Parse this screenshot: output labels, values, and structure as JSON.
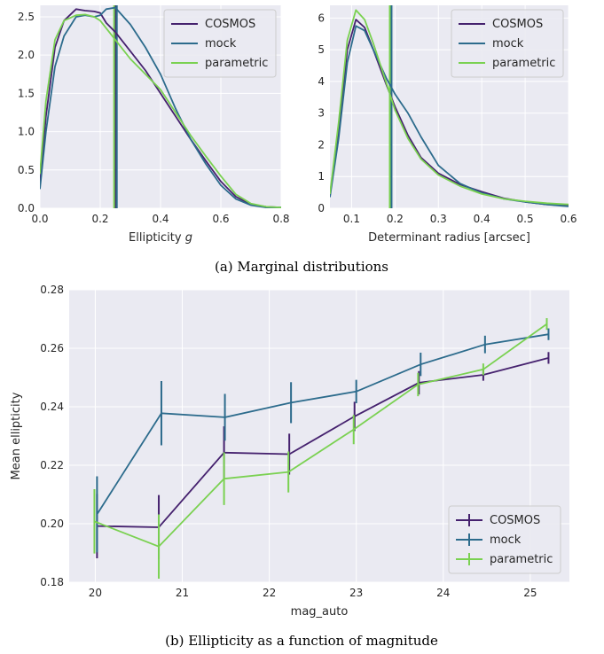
{
  "colors": {
    "COSMOS": "#45216e",
    "mock": "#2c6b8c",
    "parametric": "#7ad151",
    "panel_bg": "#eaeaf2",
    "grid": "#ffffff"
  },
  "captions": {
    "a": "(a) Marginal distributions",
    "b": "(b) Ellipticity as a function of magnitude"
  },
  "chart_data": [
    {
      "type": "line",
      "subtype": "density",
      "xlabel": "Ellipticity g",
      "xlabel_text": "Ellipticity ",
      "xlabel_italic": "g",
      "ylabel": "",
      "xlim": [
        0.0,
        0.8
      ],
      "ylim": [
        0.0,
        2.65
      ],
      "xticks": [
        0.0,
        0.2,
        0.4,
        0.6,
        0.8
      ],
      "xtick_labels": [
        "0.0",
        "0.2",
        "0.4",
        "0.6",
        "0.8"
      ],
      "yticks": [
        0.0,
        0.5,
        1.0,
        1.5,
        2.0,
        2.5
      ],
      "ytick_labels": [
        "0.0",
        "0.5",
        "1.0",
        "1.5",
        "2.0",
        "2.5"
      ],
      "grid": true,
      "legend_position": "upper right",
      "series": [
        {
          "name": "COSMOS",
          "x": [
            0.0,
            0.02,
            0.05,
            0.08,
            0.12,
            0.15,
            0.18,
            0.2,
            0.22,
            0.25,
            0.3,
            0.35,
            0.4,
            0.45,
            0.5,
            0.55,
            0.6,
            0.65,
            0.7,
            0.75,
            0.8
          ],
          "y": [
            0.3,
            1.2,
            2.1,
            2.45,
            2.6,
            2.58,
            2.57,
            2.55,
            2.42,
            2.3,
            2.05,
            1.8,
            1.5,
            1.2,
            0.9,
            0.62,
            0.35,
            0.15,
            0.05,
            0.02,
            0.01
          ]
        },
        {
          "name": "mock",
          "x": [
            0.0,
            0.02,
            0.05,
            0.08,
            0.12,
            0.15,
            0.18,
            0.2,
            0.22,
            0.25,
            0.3,
            0.35,
            0.4,
            0.45,
            0.5,
            0.55,
            0.6,
            0.65,
            0.7,
            0.75,
            0.8
          ],
          "y": [
            0.25,
            1.0,
            1.85,
            2.25,
            2.5,
            2.52,
            2.5,
            2.52,
            2.6,
            2.62,
            2.4,
            2.1,
            1.75,
            1.3,
            0.9,
            0.58,
            0.3,
            0.12,
            0.04,
            0.01,
            0.01
          ]
        },
        {
          "name": "parametric",
          "x": [
            0.0,
            0.02,
            0.05,
            0.08,
            0.12,
            0.15,
            0.18,
            0.2,
            0.22,
            0.25,
            0.3,
            0.35,
            0.4,
            0.45,
            0.5,
            0.55,
            0.6,
            0.65,
            0.7,
            0.75,
            0.8
          ],
          "y": [
            0.45,
            1.4,
            2.2,
            2.45,
            2.52,
            2.53,
            2.5,
            2.45,
            2.35,
            2.2,
            1.95,
            1.75,
            1.55,
            1.25,
            0.95,
            0.68,
            0.42,
            0.18,
            0.06,
            0.02,
            0.01
          ]
        }
      ],
      "vlines": [
        {
          "series": "COSMOS",
          "x": 0.25
        },
        {
          "series": "mock",
          "x": 0.255
        },
        {
          "series": "parametric",
          "x": 0.246
        }
      ]
    },
    {
      "type": "line",
      "subtype": "density",
      "xlabel": "Determinant radius [arcsec]",
      "ylabel": "",
      "xlim": [
        0.05,
        0.6
      ],
      "ylim": [
        0.0,
        6.4
      ],
      "xticks": [
        0.1,
        0.2,
        0.3,
        0.4,
        0.5,
        0.6
      ],
      "xtick_labels": [
        "0.1",
        "0.2",
        "0.3",
        "0.4",
        "0.5",
        "0.6"
      ],
      "yticks": [
        0,
        1,
        2,
        3,
        4,
        5,
        6
      ],
      "ytick_labels": [
        "0",
        "1",
        "2",
        "3",
        "4",
        "5",
        "6"
      ],
      "grid": true,
      "legend_position": "upper right",
      "series": [
        {
          "name": "COSMOS",
          "x": [
            0.05,
            0.07,
            0.09,
            0.11,
            0.13,
            0.15,
            0.18,
            0.2,
            0.23,
            0.26,
            0.3,
            0.35,
            0.4,
            0.45,
            0.5,
            0.55,
            0.6
          ],
          "y": [
            0.4,
            2.5,
            5.0,
            5.95,
            5.7,
            5.0,
            3.9,
            3.2,
            2.3,
            1.6,
            1.1,
            0.75,
            0.52,
            0.32,
            0.2,
            0.12,
            0.08
          ]
        },
        {
          "name": "mock",
          "x": [
            0.05,
            0.07,
            0.09,
            0.11,
            0.13,
            0.15,
            0.18,
            0.2,
            0.23,
            0.26,
            0.3,
            0.35,
            0.4,
            0.45,
            0.5,
            0.55,
            0.6
          ],
          "y": [
            0.35,
            2.2,
            4.6,
            5.75,
            5.6,
            5.0,
            4.1,
            3.6,
            3.0,
            2.25,
            1.35,
            0.78,
            0.48,
            0.3,
            0.2,
            0.12,
            0.06
          ]
        },
        {
          "name": "parametric",
          "x": [
            0.05,
            0.07,
            0.09,
            0.11,
            0.13,
            0.15,
            0.18,
            0.2,
            0.23,
            0.26,
            0.3,
            0.35,
            0.4,
            0.45,
            0.5,
            0.55,
            0.6
          ],
          "y": [
            0.45,
            2.7,
            5.3,
            6.25,
            5.95,
            5.2,
            3.95,
            3.1,
            2.2,
            1.55,
            1.05,
            0.7,
            0.45,
            0.3,
            0.22,
            0.16,
            0.12
          ]
        }
      ],
      "vlines": [
        {
          "series": "COSMOS",
          "x": 0.19
        },
        {
          "series": "mock",
          "x": 0.192
        },
        {
          "series": "parametric",
          "x": 0.188
        }
      ]
    },
    {
      "type": "line",
      "subtype": "errorbar",
      "xlabel": "mag_auto",
      "ylabel": "Mean ellipticity",
      "xlim": [
        19.7,
        25.45
      ],
      "ylim": [
        0.18,
        0.28
      ],
      "xticks": [
        20,
        21,
        22,
        23,
        24,
        25
      ],
      "xtick_labels": [
        "20",
        "21",
        "22",
        "23",
        "24",
        "25"
      ],
      "yticks": [
        0.18,
        0.2,
        0.22,
        0.24,
        0.26,
        0.28
      ],
      "ytick_labels": [
        "0.18",
        "0.20",
        "0.22",
        "0.24",
        "0.26",
        "0.28"
      ],
      "grid": true,
      "legend_position": "lower right",
      "series": [
        {
          "name": "COSMOS",
          "x": [
            20.02,
            20.73,
            21.48,
            22.23,
            22.98,
            23.72,
            24.46,
            25.21
          ],
          "y": [
            0.1992,
            0.1988,
            0.2243,
            0.2238,
            0.2367,
            0.2482,
            0.2509,
            0.2567
          ],
          "err": [
            0.011,
            0.011,
            0.009,
            0.007,
            0.005,
            0.004,
            0.002,
            0.002
          ]
        },
        {
          "name": "mock",
          "x": [
            20.02,
            20.76,
            21.49,
            22.25,
            23.0,
            23.74,
            24.48,
            25.21
          ],
          "y": [
            0.2032,
            0.2378,
            0.2364,
            0.2414,
            0.2452,
            0.2545,
            0.2613,
            0.2648
          ],
          "err": [
            0.013,
            0.011,
            0.008,
            0.007,
            0.004,
            0.004,
            0.003,
            0.002
          ]
        },
        {
          "name": "parametric",
          "x": [
            19.99,
            20.73,
            21.48,
            22.22,
            22.97,
            23.71,
            24.46,
            25.19
          ],
          "y": [
            0.2008,
            0.1922,
            0.2154,
            0.2177,
            0.2322,
            0.2476,
            0.2528,
            0.2683
          ],
          "err": [
            0.011,
            0.011,
            0.009,
            0.007,
            0.005,
            0.004,
            0.002,
            0.002
          ]
        }
      ]
    }
  ]
}
